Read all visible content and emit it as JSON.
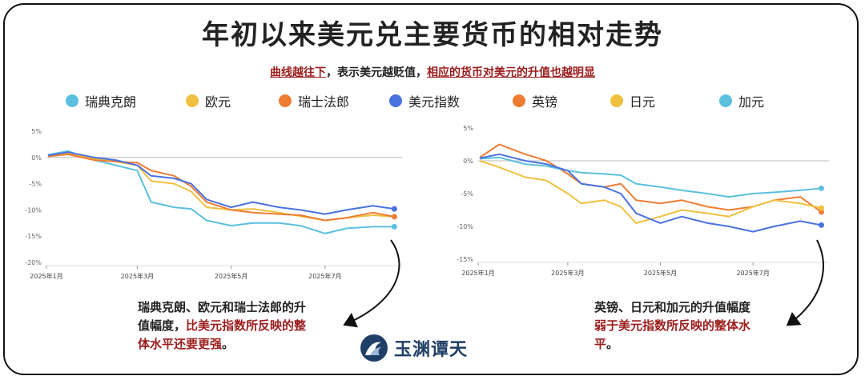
{
  "title": "年初以来美元兑主要货币的相对走势",
  "subtitle": {
    "part1": "曲线越往下",
    "part2": "，表示美元越贬值，",
    "part3": "相应的货币对美元的升值也越明显"
  },
  "legend": [
    {
      "label": "瑞典克朗",
      "color": "#5bc0de"
    },
    {
      "label": "欧元",
      "color": "#f0c040"
    },
    {
      "label": "瑞士法郎",
      "color": "#ee7d33"
    },
    {
      "label": "美元指数",
      "color": "#4a72e0"
    },
    {
      "label": "英镑",
      "color": "#ee7d33"
    },
    {
      "label": "日元",
      "color": "#f0c040"
    },
    {
      "label": "加元",
      "color": "#5bc0de"
    }
  ],
  "callouts": {
    "left": {
      "line1": "瑞典克朗、欧元和瑞士法郎的升",
      "line2a": "值幅度，",
      "line2b": "比美元指数所反映的整",
      "line3": "体水平还要更强",
      "line3end": "。"
    },
    "right": {
      "line1": "英镑、日元和加元的升值幅度",
      "line2": "弱于美元指数所反映的整体水",
      "line3a": "平",
      "line3b": "。"
    }
  },
  "logo": {
    "text": "玉渊谭天"
  },
  "chart_data": [
    {
      "type": "line",
      "x_ticks": [
        "2025年1月",
        "2025年3月",
        "2025年5月",
        "2025年7月"
      ],
      "ylim": [
        -20,
        5
      ],
      "y_ticks": [
        5,
        0,
        -5,
        -10,
        -15,
        -20
      ],
      "y_tick_labels": [
        "5%",
        "0%",
        "-5%",
        "-10%",
        "-15%",
        "-20%"
      ],
      "grid": false,
      "zero_line": true,
      "series": [
        {
          "name": "瑞典克朗",
          "color": "#5bc0de",
          "x": [
            "2025-01-02",
            "2025-01-15",
            "2025-02-01",
            "2025-02-15",
            "2025-03-01",
            "2025-03-10",
            "2025-03-25",
            "2025-04-05",
            "2025-04-15",
            "2025-05-01",
            "2025-05-15",
            "2025-06-01",
            "2025-06-15",
            "2025-07-01",
            "2025-07-15",
            "2025-08-01",
            "2025-08-15"
          ],
          "y": [
            0.5,
            1.2,
            -0.5,
            -1.5,
            -2.5,
            -8.5,
            -9.5,
            -9.8,
            -12.0,
            -13.0,
            -12.5,
            -12.5,
            -13.0,
            -14.5,
            -13.5,
            -13.2,
            -13.2
          ]
        },
        {
          "name": "欧元",
          "color": "#f0c040",
          "x": [
            "2025-01-02",
            "2025-01-15",
            "2025-02-01",
            "2025-02-15",
            "2025-03-01",
            "2025-03-10",
            "2025-03-25",
            "2025-04-05",
            "2025-04-15",
            "2025-05-01",
            "2025-05-15",
            "2025-06-01",
            "2025-06-15",
            "2025-07-01",
            "2025-07-15",
            "2025-08-01",
            "2025-08-15"
          ],
          "y": [
            0.3,
            0.8,
            -0.3,
            -0.8,
            -1.5,
            -4.5,
            -5.0,
            -6.5,
            -9.5,
            -10.0,
            -9.8,
            -10.5,
            -11.2,
            -12.0,
            -11.5,
            -11.0,
            -11.3
          ]
        },
        {
          "name": "瑞士法郎",
          "color": "#ee7d33",
          "x": [
            "2025-01-02",
            "2025-01-15",
            "2025-02-01",
            "2025-02-15",
            "2025-03-01",
            "2025-03-10",
            "2025-03-25",
            "2025-04-05",
            "2025-04-15",
            "2025-05-01",
            "2025-05-15",
            "2025-06-01",
            "2025-06-15",
            "2025-07-01",
            "2025-07-15",
            "2025-08-01",
            "2025-08-15"
          ],
          "y": [
            0.2,
            0.6,
            -0.5,
            -0.8,
            -1.0,
            -2.5,
            -3.5,
            -5.5,
            -8.5,
            -10.0,
            -10.5,
            -10.8,
            -11.0,
            -12.0,
            -11.5,
            -10.5,
            -11.3
          ]
        },
        {
          "name": "美元指数",
          "color": "#4a72e0",
          "x": [
            "2025-01-02",
            "2025-01-15",
            "2025-02-01",
            "2025-02-15",
            "2025-03-01",
            "2025-03-10",
            "2025-03-25",
            "2025-04-05",
            "2025-04-15",
            "2025-05-01",
            "2025-05-15",
            "2025-06-01",
            "2025-06-15",
            "2025-07-01",
            "2025-07-15",
            "2025-08-01",
            "2025-08-15"
          ],
          "y": [
            0.4,
            1.0,
            0.0,
            -0.5,
            -1.5,
            -3.5,
            -4.0,
            -5.0,
            -8.0,
            -9.5,
            -8.5,
            -9.5,
            -10.0,
            -10.8,
            -10.0,
            -9.2,
            -9.8
          ]
        }
      ]
    },
    {
      "type": "line",
      "x_ticks": [
        "2025年1月",
        "2025年3月",
        "2025年5月",
        "2025年7月"
      ],
      "ylim": [
        -15,
        5
      ],
      "y_ticks": [
        5,
        0,
        -5,
        -10,
        -15
      ],
      "y_tick_labels": [
        "5%",
        "0%",
        "-5%",
        "-10%",
        "-15%"
      ],
      "grid": false,
      "zero_line": true,
      "series": [
        {
          "name": "英镑",
          "color": "#ee7d33",
          "x": [
            "2025-01-02",
            "2025-01-15",
            "2025-02-01",
            "2025-02-15",
            "2025-03-01",
            "2025-03-10",
            "2025-03-25",
            "2025-04-05",
            "2025-04-15",
            "2025-05-01",
            "2025-05-15",
            "2025-06-01",
            "2025-06-15",
            "2025-07-01",
            "2025-07-15",
            "2025-08-01",
            "2025-08-15"
          ],
          "y": [
            0.5,
            2.5,
            1.0,
            0.0,
            -2.0,
            -3.5,
            -4.0,
            -3.5,
            -6.0,
            -6.5,
            -6.0,
            -7.0,
            -7.5,
            -7.0,
            -6.0,
            -5.5,
            -7.8
          ]
        },
        {
          "name": "日元",
          "color": "#f0c040",
          "x": [
            "2025-01-02",
            "2025-01-15",
            "2025-02-01",
            "2025-02-15",
            "2025-03-01",
            "2025-03-10",
            "2025-03-25",
            "2025-04-05",
            "2025-04-15",
            "2025-05-01",
            "2025-05-15",
            "2025-06-01",
            "2025-06-15",
            "2025-07-01",
            "2025-07-15",
            "2025-08-01",
            "2025-08-15"
          ],
          "y": [
            0.0,
            -1.0,
            -2.5,
            -3.0,
            -5.0,
            -6.5,
            -6.0,
            -7.0,
            -9.5,
            -8.5,
            -7.5,
            -8.0,
            -8.5,
            -7.0,
            -6.0,
            -6.5,
            -7.2
          ]
        },
        {
          "name": "加元",
          "color": "#5bc0de",
          "x": [
            "2025-01-02",
            "2025-01-15",
            "2025-02-01",
            "2025-02-15",
            "2025-03-01",
            "2025-03-10",
            "2025-03-25",
            "2025-04-05",
            "2025-04-15",
            "2025-05-01",
            "2025-05-15",
            "2025-06-01",
            "2025-06-15",
            "2025-07-01",
            "2025-07-15",
            "2025-08-01",
            "2025-08-15"
          ],
          "y": [
            0.3,
            0.5,
            -0.5,
            -0.8,
            -1.5,
            -1.8,
            -2.0,
            -2.2,
            -3.5,
            -4.0,
            -4.5,
            -5.0,
            -5.5,
            -5.0,
            -4.8,
            -4.5,
            -4.2
          ]
        },
        {
          "name": "美元指数",
          "color": "#4a72e0",
          "x": [
            "2025-01-02",
            "2025-01-15",
            "2025-02-01",
            "2025-02-15",
            "2025-03-01",
            "2025-03-10",
            "2025-03-25",
            "2025-04-05",
            "2025-04-15",
            "2025-05-01",
            "2025-05-15",
            "2025-06-01",
            "2025-06-15",
            "2025-07-01",
            "2025-07-15",
            "2025-08-01",
            "2025-08-15"
          ],
          "y": [
            0.4,
            1.0,
            0.0,
            -0.5,
            -1.5,
            -3.5,
            -4.0,
            -5.0,
            -8.0,
            -9.5,
            -8.5,
            -9.5,
            -10.0,
            -10.8,
            -10.0,
            -9.2,
            -9.8
          ]
        }
      ]
    }
  ]
}
